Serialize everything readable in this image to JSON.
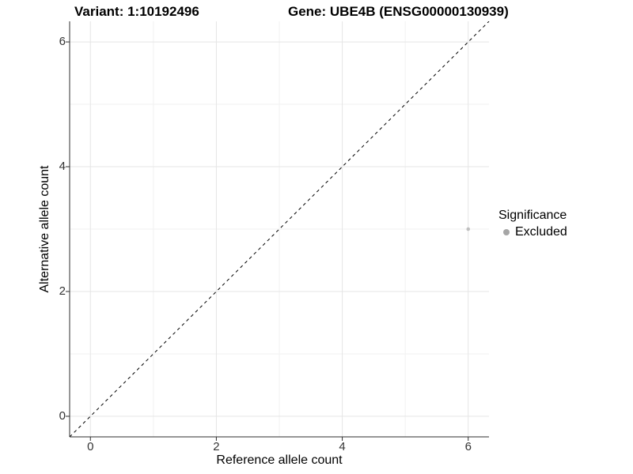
{
  "chart_data": {
    "type": "scatter",
    "title_variant": "Variant: 1:10192496",
    "title_gene": "Gene: UBE4B (ENSG00000130939)",
    "xlabel": "Reference allele count",
    "ylabel": "Alternative allele count",
    "xlim": [
      -0.33,
      6.33
    ],
    "ylim": [
      -0.33,
      6.33
    ],
    "xticks": [
      0,
      2,
      4,
      6
    ],
    "yticks": [
      0,
      2,
      4,
      6
    ],
    "xticks_minor": [
      1,
      3,
      5
    ],
    "yticks_minor": [
      1,
      3,
      5
    ],
    "grid": "major and minor gridlines, light gray on white panel",
    "reference_line": {
      "type": "identity y=x",
      "style": "dashed",
      "color": "#000000",
      "dash": [
        4,
        4
      ]
    },
    "series": [
      {
        "name": "Excluded",
        "points": [
          {
            "x": 6,
            "y": 3
          }
        ],
        "color": "#bfbfbf",
        "marker": "circle",
        "marker_radius_px": 2.3
      }
    ],
    "legend": {
      "title": "Significance",
      "position": "right",
      "entries": [
        {
          "label": "Excluded",
          "swatch_color": "#a6a6a6"
        }
      ]
    }
  },
  "colors": {
    "background": "#ffffff",
    "grid_major": "#e5e5e5",
    "grid_minor": "#f2f2f2",
    "axis_line": "#2e2e2e",
    "tick_mark": "#2e2e2e",
    "tick_label": "#333333",
    "text": "#000000"
  }
}
